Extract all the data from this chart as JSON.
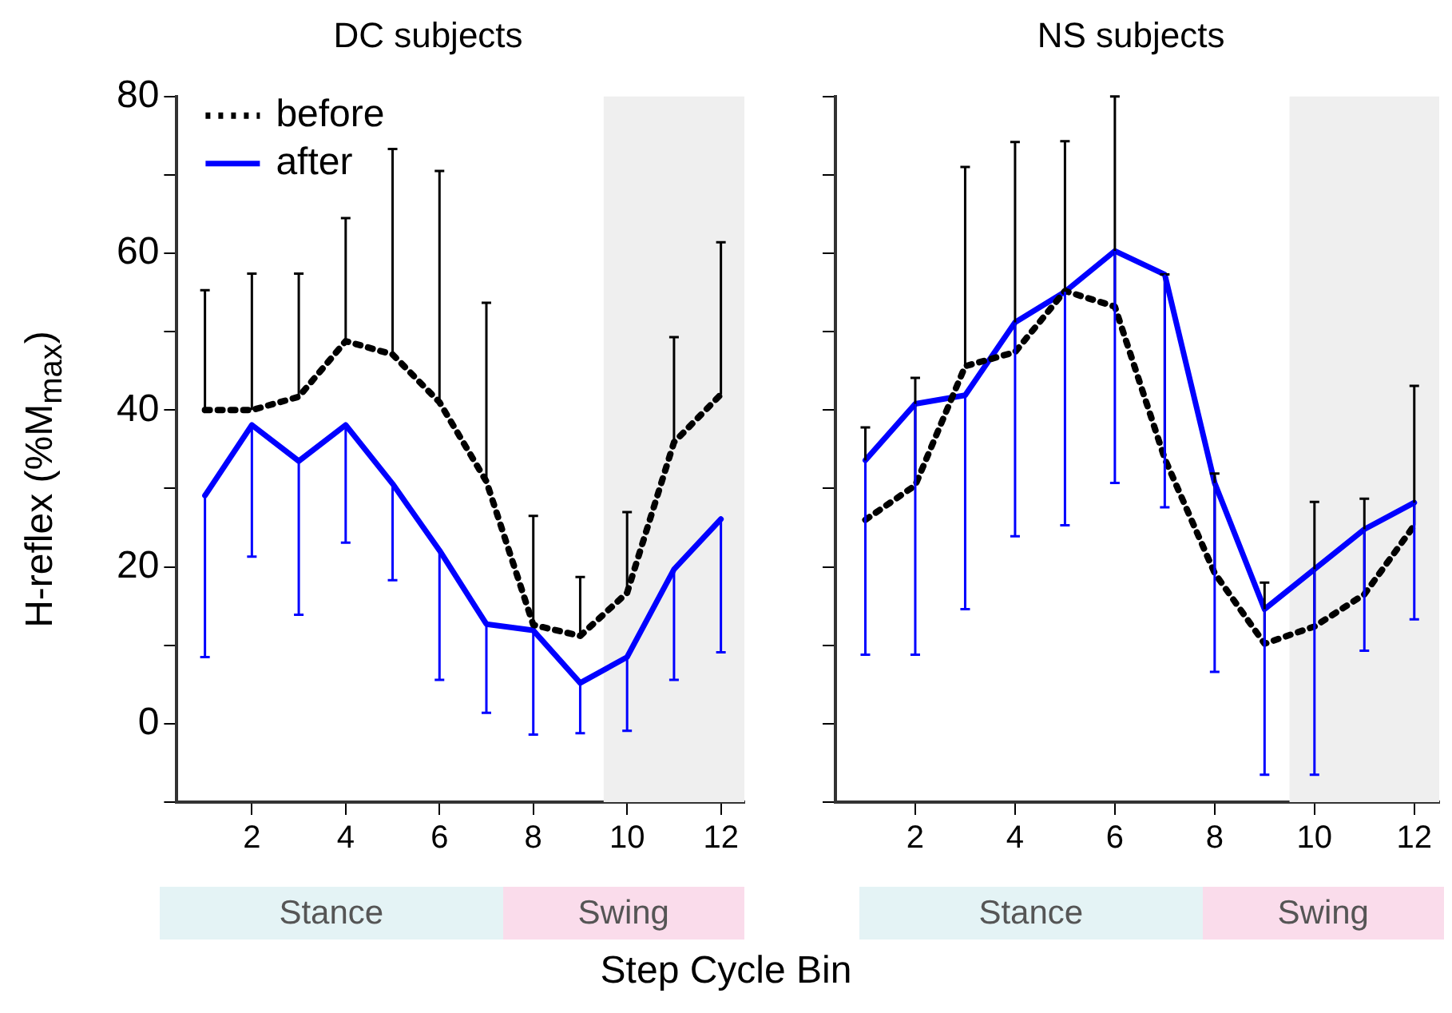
{
  "chart_data": [
    {
      "type": "line",
      "title": "DC subjects",
      "xlabel": "Step Cycle Bin",
      "ylabel": "H-reflex (%M$_{max}$)",
      "x": [
        1,
        2,
        3,
        4,
        5,
        6,
        7,
        8,
        9,
        10,
        11,
        12
      ],
      "series": [
        {
          "name": "before",
          "color": "#000000",
          "line_style": "dotted",
          "values": [
            40,
            40,
            41.7,
            48.8,
            47.1,
            41,
            30.9,
            12.6,
            11.2,
            16.7,
            35.9,
            42
          ],
          "errors": [
            [
              40,
              55.3
            ],
            [
              40,
              57.4
            ],
            [
              41.7,
              57.4
            ],
            [
              48.8,
              64.5
            ],
            [
              47.1,
              73.3
            ],
            [
              41,
              70.5
            ],
            [
              30.9,
              53.7
            ],
            [
              12.6,
              26.5
            ],
            [
              11.2,
              18.7
            ],
            [
              16.7,
              27
            ],
            [
              35.9,
              49.3
            ],
            [
              42,
              61.4
            ]
          ]
        },
        {
          "name": "after",
          "color": "#0000ff",
          "line_style": "solid",
          "values": [
            29.1,
            38.1,
            33.5,
            38.1,
            30.6,
            22.1,
            12.7,
            11.9,
            5.2,
            8.5,
            19.7,
            26.1
          ],
          "errors": [
            [
              8.5,
              29.1
            ],
            [
              21.3,
              38.1
            ],
            [
              13.9,
              33.5
            ],
            [
              23.1,
              38.1
            ],
            [
              18.3,
              30.6
            ],
            [
              5.6,
              22.1
            ],
            [
              1.4,
              12.7
            ],
            [
              -1.4,
              11.9
            ],
            [
              -1.2,
              5.2
            ],
            [
              -0.9,
              8.5
            ],
            [
              5.6,
              19.7
            ],
            [
              9.1,
              26.1
            ]
          ]
        }
      ],
      "xlim": [
        0.4,
        12.5
      ],
      "xticks": [
        2,
        4,
        6,
        8,
        10,
        12
      ],
      "ylim": [
        -10,
        80
      ],
      "yticks": [
        {
          "value": -10,
          "label": null
        },
        0,
        {
          "value": 10,
          "label": null
        },
        20,
        {
          "value": 30,
          "label": null
        },
        40,
        {
          "value": 50,
          "label": null
        },
        60,
        {
          "value": 70,
          "label": null
        },
        80
      ],
      "bands": [
        {
          "axis": "x",
          "from": 9.5,
          "to": 12.5,
          "color": "#efefef"
        }
      ],
      "annotations": [
        "Stance",
        "Swing"
      ],
      "legend": "top left",
      "grid": false,
      "marker": "none"
    },
    {
      "type": "line",
      "title": "NS subjects",
      "x": [
        1,
        2,
        3,
        4,
        5,
        6,
        7,
        8,
        9,
        10,
        11,
        12
      ],
      "series": [
        {
          "color": "#000000",
          "line_style": "dotted",
          "values": [
            26,
            30.4,
            45.6,
            47.4,
            55.2,
            53.2,
            33.8,
            19.2,
            10.2,
            12.4,
            16.5,
            25.3
          ],
          "errors": [
            [
              26,
              37.8
            ],
            [
              30.4,
              44.1
            ],
            [
              45.6,
              71
            ],
            [
              47.4,
              74.2
            ],
            [
              55.2,
              74.3
            ],
            [
              53.2,
              80
            ],
            [
              33.8,
              57.3
            ],
            [
              19.2,
              31.9
            ],
            [
              10.2,
              18
            ],
            [
              12.4,
              28.3
            ],
            [
              16.5,
              28.7
            ],
            [
              25.3,
              43.1
            ]
          ]
        },
        {
          "color": "#0000ff",
          "line_style": "solid",
          "values": [
            33.6,
            40.8,
            41.9,
            51.2,
            55.1,
            60.3,
            57.3,
            30.7,
            14.6,
            19.7,
            24.8,
            28.2
          ],
          "errors": [
            [
              8.8,
              33.6
            ],
            [
              8.8,
              40.8
            ],
            [
              14.6,
              41.9
            ],
            [
              23.9,
              51.2
            ],
            [
              25.3,
              55.1
            ],
            [
              30.7,
              60.3
            ],
            [
              27.6,
              57.3
            ],
            [
              6.6,
              30.7
            ],
            [
              -6.5,
              14.6
            ],
            [
              -6.5,
              19.7
            ],
            [
              9.3,
              24.8
            ],
            [
              13.3,
              28.2
            ]
          ]
        }
      ],
      "xlim": [
        0.4,
        12.5
      ],
      "xticks": [
        2,
        4,
        6,
        8,
        10,
        12
      ],
      "ylim": [
        -10,
        80
      ],
      "yticks": [
        -10,
        0,
        10,
        20,
        30,
        40,
        50,
        60,
        70,
        80
      ],
      "tick_labels": "x",
      "bands": [
        {
          "axis": "x",
          "from": 9.5,
          "to": 12.5,
          "color": "#efefef"
        }
      ],
      "annotations": [
        "Stance",
        "Swing"
      ],
      "legend": false,
      "grid": false,
      "marker": "none"
    }
  ]
}
